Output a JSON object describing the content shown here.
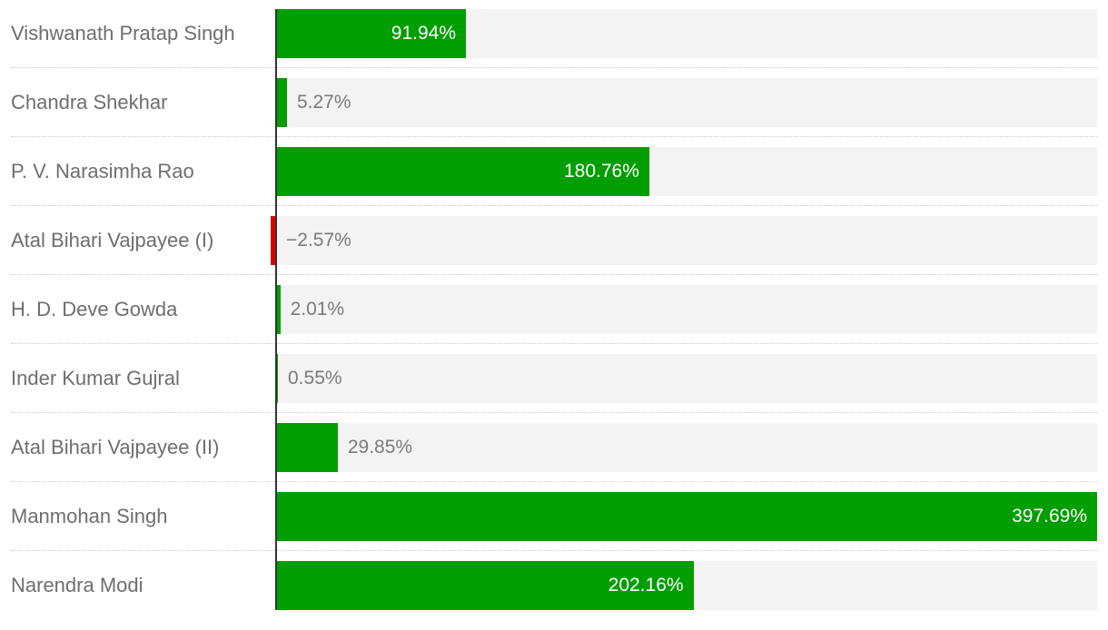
{
  "chart_data": {
    "type": "bar",
    "orientation": "horizontal",
    "categories": [
      "Vishwanath Pratap Singh",
      "Chandra Shekhar",
      "P. V. Narasimha Rao",
      "Atal Bihari Vajpayee (I)",
      "H. D. Deve Gowda",
      "Inder Kumar Gujral",
      "Atal Bihari Vajpayee (II)",
      "Manmohan Singh",
      "Narendra Modi"
    ],
    "values": [
      91.94,
      5.27,
      180.76,
      -2.57,
      2.01,
      0.55,
      29.85,
      397.69,
      202.16
    ],
    "value_labels": [
      "91.94%",
      "5.27%",
      "180.76%",
      "−2.57%",
      "2.01%",
      "0.55%",
      "29.85%",
      "397.69%",
      "202.16%"
    ],
    "xlim": [
      0,
      397.69
    ],
    "positive_color": "#009e00",
    "negative_color": "#e00000",
    "track_color": "#f3f3f3",
    "grid": false,
    "legend": "none"
  }
}
